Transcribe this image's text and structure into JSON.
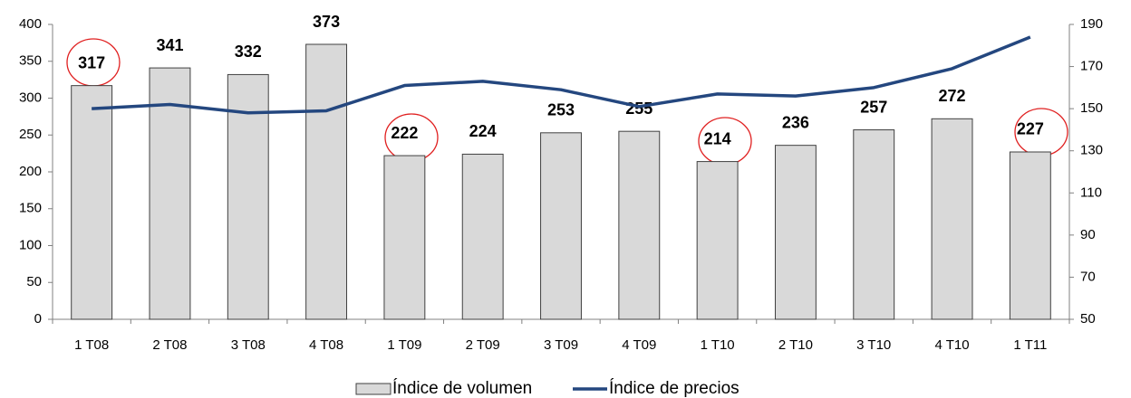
{
  "chart_data": {
    "type": "bar_line",
    "categories": [
      "1 T08",
      "2 T08",
      "3 T08",
      "4 T08",
      "1 T09",
      "2 T09",
      "3 T09",
      "4 T09",
      "1 T10",
      "2 T10",
      "3 T10",
      "4 T10",
      "1 T11"
    ],
    "series": [
      {
        "name": "Índice de volumen",
        "color": "#d9d9d9",
        "type": "bar",
        "values": [
          317,
          341,
          332,
          373,
          222,
          224,
          253,
          255,
          214,
          236,
          257,
          272,
          227
        ]
      },
      {
        "name": "Índice de precios",
        "color": "#24477f",
        "type": "line",
        "axis": "y2",
        "values": [
          150,
          152,
          148,
          149,
          161,
          163,
          159,
          151,
          157,
          156,
          160,
          169,
          184
        ]
      }
    ],
    "ylim": [
      0,
      400
    ],
    "yticks": [
      0,
      50,
      100,
      150,
      200,
      250,
      300,
      350,
      400
    ],
    "y2lim": [
      50,
      190
    ],
    "y2ticks": [
      50,
      70,
      90,
      110,
      130,
      150,
      170,
      190
    ],
    "legend": "bottom"
  }
}
